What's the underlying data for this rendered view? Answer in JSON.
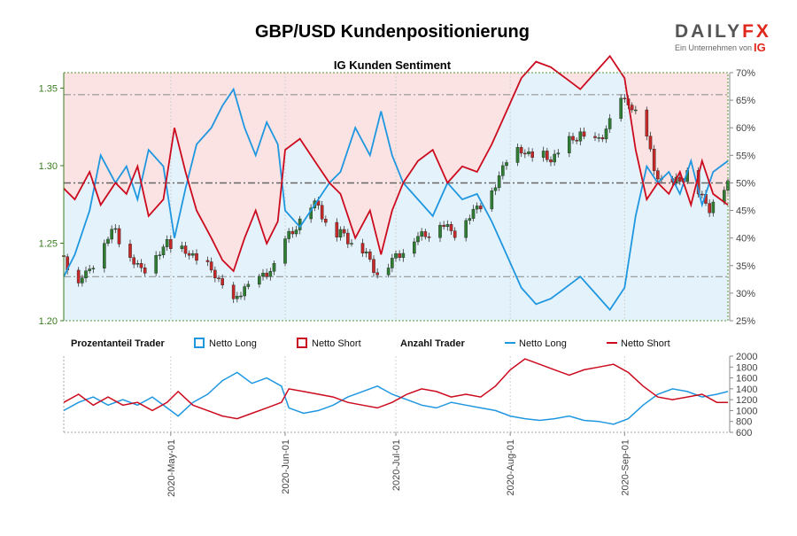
{
  "header": {
    "title": "GBP/USD Kundenpositionierung",
    "subtitle": "IG Kunden Sentiment"
  },
  "brand": {
    "name_part1": "DAILY",
    "name_part2": "FX",
    "tagline": "Ein Unternehmen von",
    "ig": "IG"
  },
  "colors": {
    "long": "#1f97e0",
    "short": "#cc0a1e",
    "long_fill": "#e4f3fb",
    "short_fill": "#fbe3e3",
    "candle_up": "#2e7d32",
    "candle_down": "#c62828",
    "left_axis": "#3a7d1f"
  },
  "legend": {
    "pct_title": "Prozentanteil Trader",
    "count_title": "Anzahl Trader",
    "net_long": "Netto Long",
    "net_short": "Netto Short"
  },
  "chart_data": {
    "type": "line",
    "x_range": [
      "2020-04-02",
      "2020-09-29"
    ],
    "x_ticks": [
      "2020-May-01",
      "2020-Jun-01",
      "2020-Jul-01",
      "2020-Aug-01",
      "2020-Sep-01"
    ],
    "price_axis": {
      "ticks": [
        "1.20",
        "1.25",
        "1.30",
        "1.35"
      ],
      "ylim": [
        1.2,
        1.36
      ]
    },
    "percent_axis": {
      "ticks": [
        "25%",
        "30%",
        "35%",
        "40%",
        "45%",
        "50%",
        "55%",
        "60%",
        "65%",
        "70%"
      ],
      "ylim": [
        25,
        70
      ]
    },
    "count_axis": {
      "ticks": [
        "600",
        "800",
        "1000",
        "1200",
        "1400",
        "1600",
        "1800",
        "2000"
      ],
      "ylim": [
        600,
        2000
      ]
    },
    "reference_lines_percent": [
      33,
      50,
      66
    ],
    "price_anchors": [
      [
        "2020-04-02",
        1.242
      ],
      [
        "2020-04-05",
        1.225
      ],
      [
        "2020-04-08",
        1.228
      ],
      [
        "2020-04-12",
        1.248
      ],
      [
        "2020-04-16",
        1.258
      ],
      [
        "2020-04-20",
        1.24
      ],
      [
        "2020-04-23",
        1.232
      ],
      [
        "2020-04-27",
        1.24
      ],
      [
        "2020-04-30",
        1.25
      ],
      [
        "2020-05-04",
        1.245
      ],
      [
        "2020-05-08",
        1.24
      ],
      [
        "2020-05-12",
        1.232
      ],
      [
        "2020-05-15",
        1.223
      ],
      [
        "2020-05-18",
        1.21
      ],
      [
        "2020-05-21",
        1.222
      ],
      [
        "2020-05-25",
        1.225
      ],
      [
        "2020-05-29",
        1.236
      ],
      [
        "2020-06-01",
        1.25
      ],
      [
        "2020-06-05",
        1.265
      ],
      [
        "2020-06-10",
        1.275
      ],
      [
        "2020-06-14",
        1.252
      ],
      [
        "2020-06-17",
        1.256
      ],
      [
        "2020-06-22",
        1.244
      ],
      [
        "2020-06-26",
        1.232
      ],
      [
        "2020-06-29",
        1.235
      ],
      [
        "2020-07-03",
        1.247
      ],
      [
        "2020-07-08",
        1.255
      ],
      [
        "2020-07-13",
        1.262
      ],
      [
        "2020-07-17",
        1.258
      ],
      [
        "2020-07-20",
        1.264
      ],
      [
        "2020-07-23",
        1.274
      ],
      [
        "2020-07-27",
        1.282
      ],
      [
        "2020-07-31",
        1.305
      ],
      [
        "2020-08-04",
        1.31
      ],
      [
        "2020-08-08",
        1.306
      ],
      [
        "2020-08-12",
        1.305
      ],
      [
        "2020-08-16",
        1.312
      ],
      [
        "2020-08-20",
        1.322
      ],
      [
        "2020-08-23",
        1.31
      ],
      [
        "2020-08-27",
        1.325
      ],
      [
        "2020-08-31",
        1.34
      ],
      [
        "2020-09-02",
        1.343
      ],
      [
        "2020-09-06",
        1.325
      ],
      [
        "2020-09-09",
        1.3
      ],
      [
        "2020-09-12",
        1.285
      ],
      [
        "2020-09-15",
        1.29
      ],
      [
        "2020-09-18",
        1.296
      ],
      [
        "2020-09-21",
        1.282
      ],
      [
        "2020-09-24",
        1.274
      ],
      [
        "2020-09-27",
        1.282
      ],
      [
        "2020-09-29",
        1.289
      ]
    ],
    "series": [
      {
        "name": "Netto Long",
        "percent": [
          [
            "2020-04-02",
            33
          ],
          [
            "2020-04-05",
            37
          ],
          [
            "2020-04-09",
            45
          ],
          [
            "2020-04-12",
            55
          ],
          [
            "2020-04-16",
            50
          ],
          [
            "2020-04-19",
            53
          ],
          [
            "2020-04-22",
            47
          ],
          [
            "2020-04-25",
            56
          ],
          [
            "2020-04-29",
            53
          ],
          [
            "2020-05-02",
            40
          ],
          [
            "2020-05-05",
            49
          ],
          [
            "2020-05-08",
            57
          ],
          [
            "2020-05-12",
            60
          ],
          [
            "2020-05-15",
            64
          ],
          [
            "2020-05-18",
            67
          ],
          [
            "2020-05-21",
            60
          ],
          [
            "2020-05-24",
            55
          ],
          [
            "2020-05-27",
            61
          ],
          [
            "2020-05-30",
            57
          ],
          [
            "2020-06-01",
            45
          ],
          [
            "2020-06-05",
            42
          ],
          [
            "2020-06-09",
            46
          ],
          [
            "2020-06-13",
            50
          ],
          [
            "2020-06-16",
            52
          ],
          [
            "2020-06-20",
            60
          ],
          [
            "2020-06-24",
            55
          ],
          [
            "2020-06-27",
            63
          ],
          [
            "2020-06-30",
            55
          ],
          [
            "2020-07-03",
            50
          ],
          [
            "2020-07-07",
            47
          ],
          [
            "2020-07-11",
            44
          ],
          [
            "2020-07-15",
            50
          ],
          [
            "2020-07-19",
            47
          ],
          [
            "2020-07-23",
            48
          ],
          [
            "2020-07-27",
            43
          ],
          [
            "2020-07-31",
            37
          ],
          [
            "2020-08-04",
            31
          ],
          [
            "2020-08-08",
            28
          ],
          [
            "2020-08-12",
            29
          ],
          [
            "2020-08-16",
            31
          ],
          [
            "2020-08-20",
            33
          ],
          [
            "2020-08-24",
            30
          ],
          [
            "2020-08-28",
            27
          ],
          [
            "2020-09-01",
            31
          ],
          [
            "2020-09-04",
            44
          ],
          [
            "2020-09-07",
            53
          ],
          [
            "2020-09-10",
            50
          ],
          [
            "2020-09-13",
            52
          ],
          [
            "2020-09-16",
            48
          ],
          [
            "2020-09-19",
            54
          ],
          [
            "2020-09-22",
            46
          ],
          [
            "2020-09-25",
            52
          ],
          [
            "2020-09-29",
            54
          ]
        ],
        "count": [
          [
            "2020-04-02",
            1000
          ],
          [
            "2020-04-06",
            1150
          ],
          [
            "2020-04-10",
            1250
          ],
          [
            "2020-04-14",
            1100
          ],
          [
            "2020-04-18",
            1200
          ],
          [
            "2020-04-22",
            1100
          ],
          [
            "2020-04-26",
            1250
          ],
          [
            "2020-04-30",
            1050
          ],
          [
            "2020-05-03",
            900
          ],
          [
            "2020-05-07",
            1150
          ],
          [
            "2020-05-11",
            1300
          ],
          [
            "2020-05-15",
            1550
          ],
          [
            "2020-05-19",
            1700
          ],
          [
            "2020-05-23",
            1500
          ],
          [
            "2020-05-27",
            1600
          ],
          [
            "2020-05-31",
            1450
          ],
          [
            "2020-06-02",
            1050
          ],
          [
            "2020-06-06",
            950
          ],
          [
            "2020-06-10",
            1000
          ],
          [
            "2020-06-14",
            1100
          ],
          [
            "2020-06-18",
            1250
          ],
          [
            "2020-06-22",
            1350
          ],
          [
            "2020-06-26",
            1450
          ],
          [
            "2020-06-30",
            1300
          ],
          [
            "2020-07-04",
            1200
          ],
          [
            "2020-07-08",
            1100
          ],
          [
            "2020-07-12",
            1050
          ],
          [
            "2020-07-16",
            1150
          ],
          [
            "2020-07-20",
            1100
          ],
          [
            "2020-07-24",
            1050
          ],
          [
            "2020-07-28",
            1000
          ],
          [
            "2020-08-01",
            900
          ],
          [
            "2020-08-05",
            850
          ],
          [
            "2020-08-09",
            820
          ],
          [
            "2020-08-13",
            850
          ],
          [
            "2020-08-17",
            900
          ],
          [
            "2020-08-21",
            820
          ],
          [
            "2020-08-25",
            800
          ],
          [
            "2020-08-29",
            750
          ],
          [
            "2020-09-02",
            850
          ],
          [
            "2020-09-06",
            1100
          ],
          [
            "2020-09-10",
            1300
          ],
          [
            "2020-09-14",
            1400
          ],
          [
            "2020-09-18",
            1350
          ],
          [
            "2020-09-22",
            1250
          ],
          [
            "2020-09-26",
            1300
          ],
          [
            "2020-09-29",
            1350
          ]
        ]
      },
      {
        "name": "Netto Short",
        "percent": [
          [
            "2020-04-02",
            49
          ],
          [
            "2020-04-05",
            47
          ],
          [
            "2020-04-09",
            52
          ],
          [
            "2020-04-12",
            46
          ],
          [
            "2020-04-16",
            50
          ],
          [
            "2020-04-19",
            48
          ],
          [
            "2020-04-22",
            53
          ],
          [
            "2020-04-25",
            44
          ],
          [
            "2020-04-29",
            47
          ],
          [
            "2020-05-02",
            60
          ],
          [
            "2020-05-05",
            52
          ],
          [
            "2020-05-08",
            45
          ],
          [
            "2020-05-12",
            40
          ],
          [
            "2020-05-15",
            36
          ],
          [
            "2020-05-18",
            34
          ],
          [
            "2020-05-21",
            40
          ],
          [
            "2020-05-24",
            45
          ],
          [
            "2020-05-27",
            39
          ],
          [
            "2020-05-30",
            43
          ],
          [
            "2020-06-01",
            56
          ],
          [
            "2020-06-05",
            58
          ],
          [
            "2020-06-09",
            54
          ],
          [
            "2020-06-13",
            50
          ],
          [
            "2020-06-16",
            48
          ],
          [
            "2020-06-20",
            40
          ],
          [
            "2020-06-24",
            45
          ],
          [
            "2020-06-27",
            37
          ],
          [
            "2020-06-30",
            45
          ],
          [
            "2020-07-03",
            50
          ],
          [
            "2020-07-07",
            54
          ],
          [
            "2020-07-11",
            56
          ],
          [
            "2020-07-15",
            50
          ],
          [
            "2020-07-19",
            53
          ],
          [
            "2020-07-23",
            52
          ],
          [
            "2020-07-27",
            57
          ],
          [
            "2020-07-31",
            63
          ],
          [
            "2020-08-04",
            69
          ],
          [
            "2020-08-08",
            72
          ],
          [
            "2020-08-12",
            71
          ],
          [
            "2020-08-16",
            69
          ],
          [
            "2020-08-20",
            67
          ],
          [
            "2020-08-24",
            70
          ],
          [
            "2020-08-28",
            73
          ],
          [
            "2020-09-01",
            69
          ],
          [
            "2020-09-04",
            56
          ],
          [
            "2020-09-07",
            47
          ],
          [
            "2020-09-10",
            50
          ],
          [
            "2020-09-13",
            48
          ],
          [
            "2020-09-16",
            52
          ],
          [
            "2020-09-19",
            46
          ],
          [
            "2020-09-22",
            54
          ],
          [
            "2020-09-25",
            48
          ],
          [
            "2020-09-29",
            46
          ]
        ],
        "count": [
          [
            "2020-04-02",
            1150
          ],
          [
            "2020-04-06",
            1300
          ],
          [
            "2020-04-10",
            1100
          ],
          [
            "2020-04-14",
            1250
          ],
          [
            "2020-04-18",
            1100
          ],
          [
            "2020-04-22",
            1150
          ],
          [
            "2020-04-26",
            1000
          ],
          [
            "2020-04-30",
            1150
          ],
          [
            "2020-05-03",
            1350
          ],
          [
            "2020-05-07",
            1100
          ],
          [
            "2020-05-11",
            1000
          ],
          [
            "2020-05-15",
            900
          ],
          [
            "2020-05-19",
            850
          ],
          [
            "2020-05-23",
            950
          ],
          [
            "2020-05-27",
            1050
          ],
          [
            "2020-05-31",
            1150
          ],
          [
            "2020-06-02",
            1400
          ],
          [
            "2020-06-06",
            1350
          ],
          [
            "2020-06-10",
            1300
          ],
          [
            "2020-06-14",
            1250
          ],
          [
            "2020-06-18",
            1150
          ],
          [
            "2020-06-22",
            1100
          ],
          [
            "2020-06-26",
            1050
          ],
          [
            "2020-06-30",
            1150
          ],
          [
            "2020-07-04",
            1300
          ],
          [
            "2020-07-08",
            1400
          ],
          [
            "2020-07-12",
            1350
          ],
          [
            "2020-07-16",
            1250
          ],
          [
            "2020-07-20",
            1300
          ],
          [
            "2020-07-24",
            1250
          ],
          [
            "2020-07-28",
            1450
          ],
          [
            "2020-08-01",
            1750
          ],
          [
            "2020-08-05",
            1950
          ],
          [
            "2020-08-09",
            1850
          ],
          [
            "2020-08-13",
            1750
          ],
          [
            "2020-08-17",
            1650
          ],
          [
            "2020-08-21",
            1750
          ],
          [
            "2020-08-25",
            1800
          ],
          [
            "2020-08-29",
            1850
          ],
          [
            "2020-09-02",
            1700
          ],
          [
            "2020-09-06",
            1450
          ],
          [
            "2020-09-10",
            1250
          ],
          [
            "2020-09-14",
            1200
          ],
          [
            "2020-09-18",
            1250
          ],
          [
            "2020-09-22",
            1300
          ],
          [
            "2020-09-26",
            1150
          ],
          [
            "2020-09-29",
            1150
          ]
        ]
      }
    ]
  }
}
